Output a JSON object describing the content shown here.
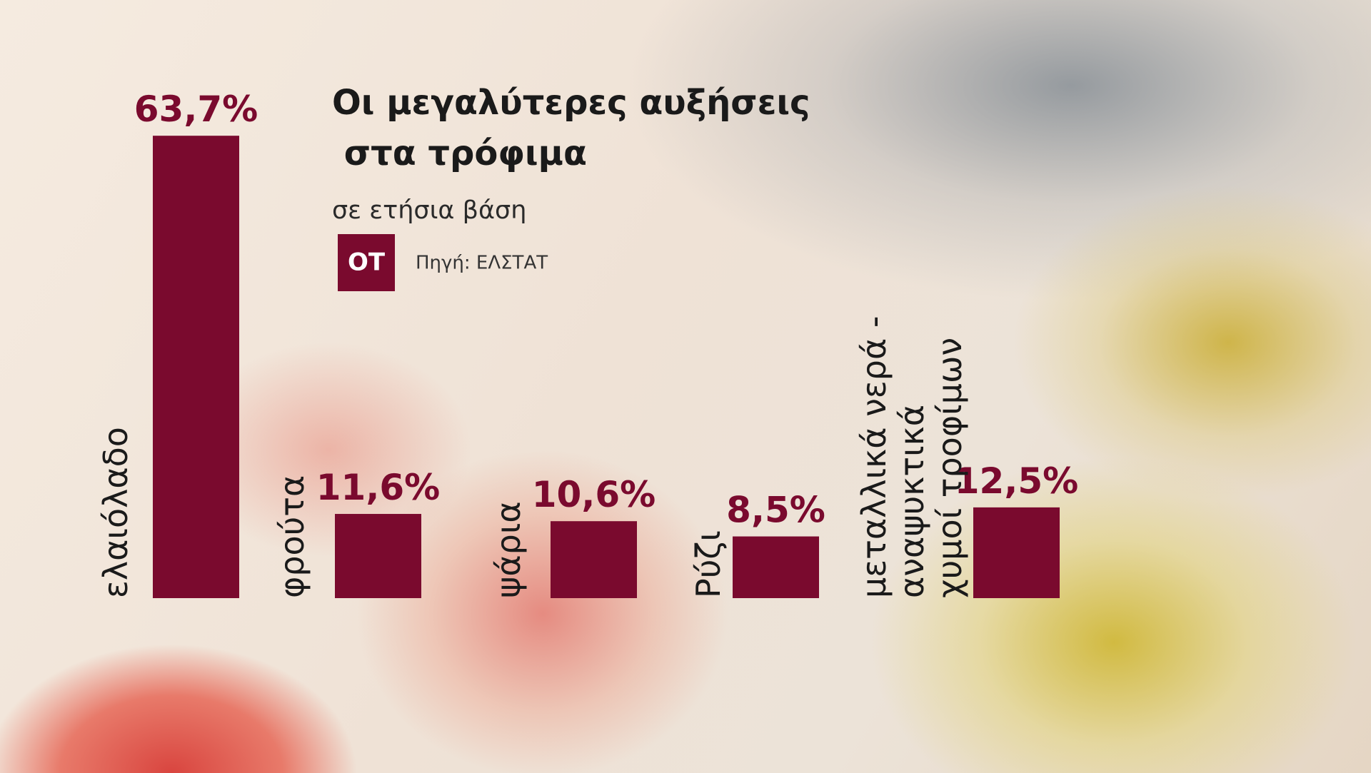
{
  "chart_data": {
    "type": "bar",
    "title": "Οι μεγαλύτερες αυξήσεις στα τρόφιμα",
    "subtitle": "σε ετήσια βάση",
    "logo": "ΟΤ",
    "source": "Πηγή: ΕΛΣΤΑΤ",
    "categories": [
      "ελαιόλαδο",
      "φρούτα",
      "ψάρια",
      "Ρύζι",
      [
        "μεταλλικά νερά -",
        "αναψυκτικά",
        "χυμοί τροφίμων"
      ]
    ],
    "values": [
      63.7,
      11.6,
      10.6,
      8.5,
      12.5
    ],
    "value_labels": [
      "63,7%",
      "11,6%",
      "10,6%",
      "8,5%",
      "12,5%"
    ],
    "color": "#7a0a2e"
  }
}
